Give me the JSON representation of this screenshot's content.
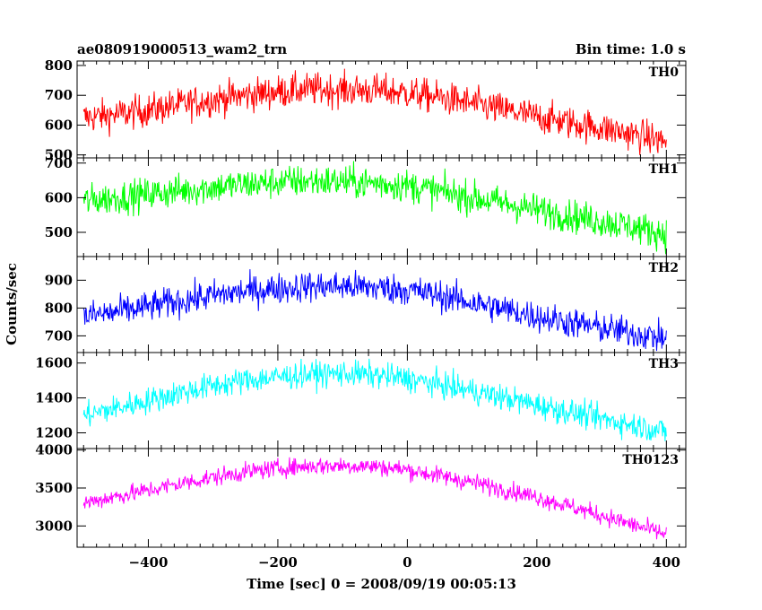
{
  "chart_data": {
    "type": "line",
    "title_left": "ae080919000513_wam2_trn",
    "title_right": "Bin time: 1.0 s",
    "xlabel": "Time [sec] 0 = 2008/09/19 00:05:13",
    "ylabel": "Counts/sec",
    "xlim": [
      -510,
      430
    ],
    "x_ticks": [
      -400,
      -200,
      0,
      200,
      400
    ],
    "bin_time_s": 1.0,
    "grid": false,
    "series": [
      {
        "name": "TH0",
        "color": "#ff0000",
        "ylim": [
          490,
          815
        ],
        "y_ticks": [
          500,
          600,
          700,
          800
        ],
        "x": [
          -500,
          -450,
          -400,
          -350,
          -300,
          -250,
          -200,
          -150,
          -100,
          -50,
          0,
          50,
          100,
          150,
          200,
          250,
          300,
          350,
          400
        ],
        "mean": [
          625,
          635,
          650,
          668,
          686,
          700,
          712,
          720,
          718,
          716,
          708,
          692,
          672,
          650,
          628,
          608,
          590,
          568,
          545
        ],
        "noise": 28
      },
      {
        "name": "TH1",
        "color": "#00ff00",
        "ylim": [
          430,
          715
        ],
        "y_ticks": [
          500,
          600,
          700
        ],
        "x": [
          -500,
          -450,
          -400,
          -350,
          -300,
          -250,
          -200,
          -150,
          -100,
          -50,
          0,
          50,
          100,
          150,
          200,
          250,
          300,
          350,
          400
        ],
        "mean": [
          590,
          600,
          610,
          620,
          630,
          638,
          645,
          648,
          646,
          642,
          635,
          618,
          600,
          583,
          565,
          548,
          532,
          515,
          495
        ],
        "noise": 24
      },
      {
        "name": "TH2",
        "color": "#0000ff",
        "ylim": [
          640,
          985
        ],
        "y_ticks": [
          700,
          800,
          900
        ],
        "x": [
          -500,
          -450,
          -400,
          -350,
          -300,
          -250,
          -200,
          -150,
          -100,
          -50,
          0,
          50,
          100,
          150,
          200,
          250,
          300,
          350,
          400
        ],
        "mean": [
          770,
          785,
          805,
          825,
          845,
          860,
          870,
          878,
          878,
          874,
          865,
          845,
          820,
          795,
          770,
          748,
          728,
          710,
          690
        ],
        "noise": 28
      },
      {
        "name": "TH3",
        "color": "#00ffff",
        "ylim": [
          1110,
          1660
        ],
        "y_ticks": [
          1200,
          1400,
          1600
        ],
        "x": [
          -500,
          -450,
          -400,
          -350,
          -300,
          -250,
          -200,
          -150,
          -100,
          -50,
          0,
          50,
          100,
          150,
          200,
          250,
          300,
          350,
          400
        ],
        "mean": [
          1300,
          1340,
          1385,
          1430,
          1470,
          1500,
          1520,
          1535,
          1540,
          1530,
          1510,
          1475,
          1440,
          1400,
          1360,
          1320,
          1280,
          1245,
          1205
        ],
        "noise": 38
      },
      {
        "name": "TH0123",
        "color": "#ff00ff",
        "ylim": [
          2720,
          4020
        ],
        "y_ticks": [
          3000,
          3500,
          4000
        ],
        "x": [
          -500,
          -450,
          -400,
          -350,
          -300,
          -250,
          -200,
          -150,
          -100,
          -50,
          0,
          50,
          100,
          150,
          200,
          250,
          300,
          350,
          400
        ],
        "mean": [
          3300,
          3390,
          3470,
          3560,
          3640,
          3710,
          3760,
          3790,
          3795,
          3785,
          3740,
          3660,
          3575,
          3480,
          3380,
          3260,
          3140,
          3010,
          2890
        ],
        "noise": 60
      }
    ]
  }
}
